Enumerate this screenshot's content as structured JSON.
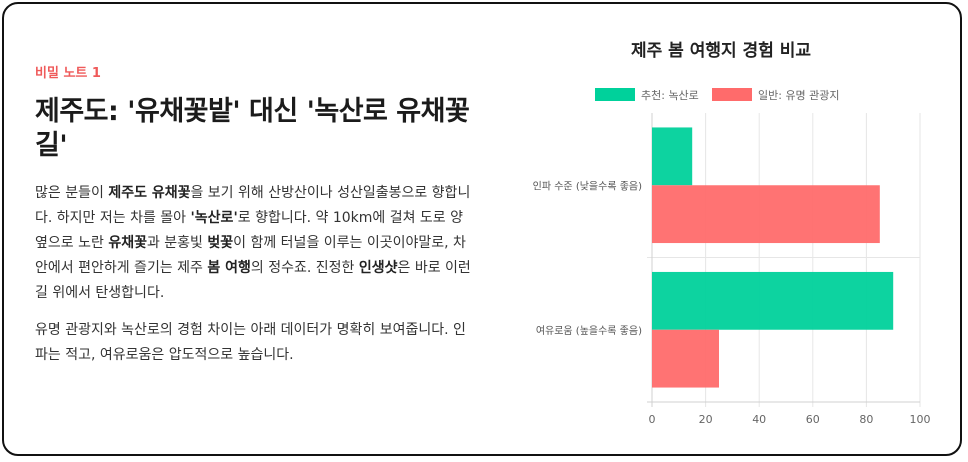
{
  "article": {
    "badge": "비밀 노트 1",
    "title": "제주도: '유채꽃밭' 대신 '녹산로 유채꽃길'",
    "paragraphs": [
      [
        {
          "t": "많은 분들이 ",
          "b": false
        },
        {
          "t": "제주도 유채꽃",
          "b": true
        },
        {
          "t": "을 보기 위해 산방산이나 성산일출봉으로 향합니다. 하지만 저는 차를 몰아 ",
          "b": false
        },
        {
          "t": "'녹산로'",
          "b": true
        },
        {
          "t": "로 향합니다. 약 10km에 걸쳐 도로 양옆으로 노란 ",
          "b": false
        },
        {
          "t": "유채꽃",
          "b": true
        },
        {
          "t": "과 분홍빛 ",
          "b": false
        },
        {
          "t": "벚꽃",
          "b": true
        },
        {
          "t": "이 함께 터널을 이루는 이곳이야말로, 차 안에서 편안하게 즐기는 제주 ",
          "b": false
        },
        {
          "t": "봄 여행",
          "b": true
        },
        {
          "t": "의 정수죠. 진정한 ",
          "b": false
        },
        {
          "t": "인생샷",
          "b": true
        },
        {
          "t": "은 바로 이런 길 위에서 탄생합니다.",
          "b": false
        }
      ],
      [
        {
          "t": "유명 관광지와 녹산로의 경험 차이는 아래 데이터가 명확히 보여줍니다. 인파는 적고, 여유로움은 압도적으로 높습니다.",
          "b": false
        }
      ]
    ]
  },
  "chart_data": {
    "type": "bar",
    "orientation": "horizontal",
    "title": "제주 봄 여행지 경험 비교",
    "categories": [
      "인파 수준 (낮을수록 좋음)",
      "여유로움 (높을수록 좋음)"
    ],
    "series": [
      {
        "name": "추천: 녹산로",
        "values": [
          15,
          90
        ],
        "color": "#00d19b"
      },
      {
        "name": "일반: 유명 관광지",
        "values": [
          85,
          25
        ],
        "color": "#ff6b6b"
      }
    ],
    "xlim": [
      0,
      100
    ],
    "xticks": [
      0,
      20,
      40,
      60,
      80,
      100
    ],
    "grid": true,
    "legend_position": "top"
  }
}
